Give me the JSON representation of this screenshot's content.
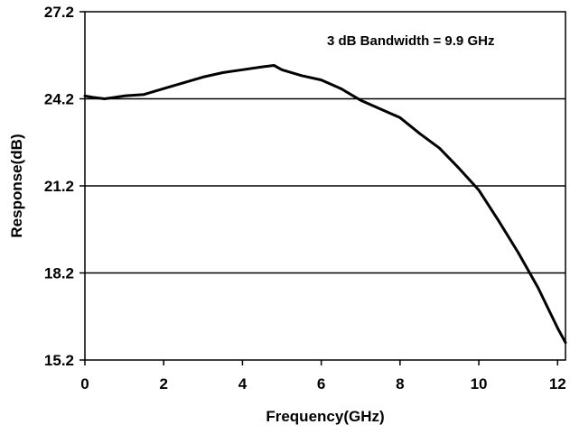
{
  "chart_data": {
    "type": "line",
    "title": "",
    "xlabel": "Frequency(GHz)",
    "ylabel": "Response(dB)",
    "xlim": [
      0,
      12.2
    ],
    "ylim": [
      15.2,
      27.2
    ],
    "x_ticks": [
      0,
      2,
      4,
      6,
      8,
      10,
      12
    ],
    "y_ticks": [
      15.2,
      18.2,
      21.2,
      24.2,
      27.2
    ],
    "x_tick_labels": [
      "0",
      "2",
      "4",
      "6",
      "8",
      "10",
      "12"
    ],
    "y_tick_labels": [
      "15.2",
      "18.2",
      "21.2",
      "24.2",
      "27.2"
    ],
    "grid": "horizontal",
    "legend": "none",
    "annotation": "3 dB Bandwidth = 9.9 GHz",
    "line_color": "#000000",
    "series": [
      {
        "x": [
          0.0,
          0.2,
          0.5,
          1.0,
          1.5,
          2.0,
          2.5,
          3.0,
          3.5,
          4.0,
          4.5,
          4.8,
          5.0,
          5.5,
          6.0,
          6.5,
          7.0,
          7.5,
          8.0,
          8.5,
          9.0,
          9.5,
          10.0,
          10.5,
          11.0,
          11.5,
          12.0,
          12.2
        ],
        "y": [
          24.3,
          24.25,
          24.2,
          24.3,
          24.35,
          24.55,
          24.75,
          24.95,
          25.1,
          25.2,
          25.3,
          25.35,
          25.2,
          25.0,
          24.85,
          24.55,
          24.15,
          23.85,
          23.55,
          23.0,
          22.5,
          21.8,
          21.05,
          20.0,
          18.9,
          17.7,
          16.3,
          15.8
        ]
      }
    ]
  }
}
